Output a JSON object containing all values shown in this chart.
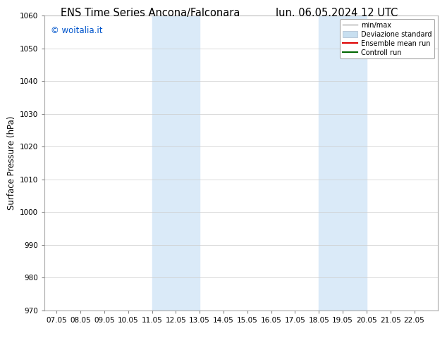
{
  "title_left": "ENS Time Series Ancona/Falconara",
  "title_right": "lun. 06.05.2024 12 UTC",
  "ylabel": "Surface Pressure (hPa)",
  "watermark": "© woitalia.it",
  "watermark_color": "#0055cc",
  "xlim_left": 6.5,
  "xlim_right": 23.0,
  "ylim_bottom": 970,
  "ylim_top": 1060,
  "yticks": [
    970,
    980,
    990,
    1000,
    1010,
    1020,
    1030,
    1040,
    1050,
    1060
  ],
  "xtick_labels": [
    "07.05",
    "08.05",
    "09.05",
    "10.05",
    "11.05",
    "12.05",
    "13.05",
    "14.05",
    "15.05",
    "16.05",
    "17.05",
    "18.05",
    "19.05",
    "20.05",
    "21.05",
    "22.05"
  ],
  "xtick_positions": [
    7.0,
    8.0,
    9.0,
    10.0,
    11.0,
    12.0,
    13.0,
    14.0,
    15.0,
    16.0,
    17.0,
    18.0,
    19.0,
    20.0,
    21.0,
    22.0
  ],
  "shaded_bands": [
    {
      "x_start": 11.0,
      "x_end": 13.0,
      "color": "#daeaf8"
    },
    {
      "x_start": 18.0,
      "x_end": 20.0,
      "color": "#daeaf8"
    }
  ],
  "legend_entries": [
    {
      "label": "min/max",
      "color": "#aaaaaa",
      "lw": 1.0,
      "type": "line"
    },
    {
      "label": "Deviazione standard",
      "color": "#c8dff0",
      "lw": 8,
      "type": "patch"
    },
    {
      "label": "Ensemble mean run",
      "color": "#dd0000",
      "lw": 1.5,
      "type": "line"
    },
    {
      "label": "Controll run",
      "color": "#006600",
      "lw": 1.5,
      "type": "line"
    }
  ],
  "background_color": "#ffffff",
  "plot_bg_color": "#ffffff",
  "grid_color": "#cccccc",
  "tick_fontsize": 7.5,
  "title_fontsize": 10.5,
  "ylabel_fontsize": 8.5
}
